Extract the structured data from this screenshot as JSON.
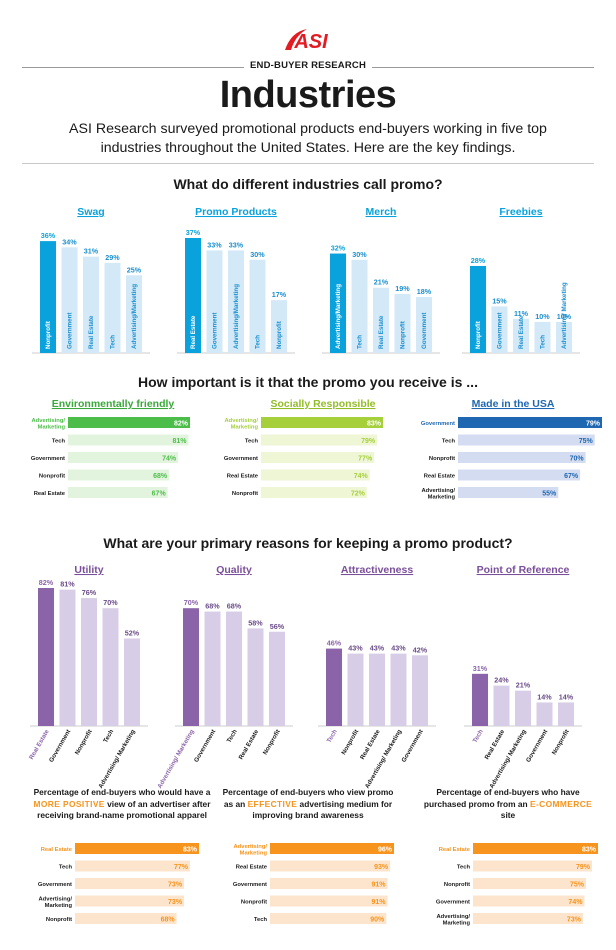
{
  "header": {
    "logo_text": "ASI",
    "kicker": "END-BUYER RESEARCH",
    "title": "Industries",
    "intro": "ASI Research surveyed promotional products end-buyers working in five top industries throughout the United States. Here are the key findings.",
    "logo_color": "#e31b23"
  },
  "sections": {
    "promo_names": "What do different industries call promo?",
    "importance": "How important is it that the promo you receive is ...",
    "reasons": "What are your primary reasons for keeping a promo product?"
  },
  "footnotes": {
    "positive": {
      "before": "Percentage of end-buyers who would have a ",
      "highlight": "MORE POSITIVE",
      "after": " view of an advertiser after receiving brand-name promotional apparel"
    },
    "effective": {
      "before": "Percentage of end-buyers who view promo as an ",
      "highlight": "EFFECTIVE",
      "after": " advertising medium for improving brand awareness"
    },
    "ecommerce": {
      "before": "Percentage of end-buyers who have purchased promo from an ",
      "highlight": "E-COMMERCE",
      "after": " site"
    }
  },
  "colors": {
    "blue_dark": "#0aa2dc",
    "blue_light": "#d3e9f8",
    "green_dark": "#4dbd4a",
    "green_light": "#e3f4de",
    "lime_dark": "#a6cf3c",
    "lime_light": "#eff6d5",
    "navy_dark": "#1f67b1",
    "navy_light": "#d4dcf1",
    "purple_dark": "#8a63a8",
    "purple_light": "#d8cde6",
    "orange_dark": "#f7941d",
    "orange_light": "#fde4cc"
  },
  "chart_data": [
    {
      "type": "bar",
      "group": "promo_names",
      "title": "Swag",
      "categories": [
        "Nonprofit",
        "Government",
        "Real Estate",
        "Tech",
        "Advertising/Marketing"
      ],
      "values": [
        36,
        34,
        31,
        29,
        25
      ],
      "labels": [
        "36%",
        "34%",
        "31%",
        "29%",
        "25%"
      ]
    },
    {
      "type": "bar",
      "group": "promo_names",
      "title": "Promo Products",
      "categories": [
        "Real Estate",
        "Government",
        "Advertising/Marketing",
        "Tech",
        "Nonprofit"
      ],
      "values": [
        37,
        33,
        33,
        30,
        17
      ],
      "labels": [
        "37%",
        "33%",
        "33%",
        "30%",
        "17%"
      ]
    },
    {
      "type": "bar",
      "group": "promo_names",
      "title": "Merch",
      "categories": [
        "Advertising/Marketing",
        "Tech",
        "Real Estate",
        "Nonprofit",
        "Government"
      ],
      "values": [
        32,
        30,
        21,
        19,
        18
      ],
      "labels": [
        "32%",
        "30%",
        "21%",
        "19%",
        "18%"
      ]
    },
    {
      "type": "bar",
      "group": "promo_names",
      "title": "Freebies",
      "categories": [
        "Nonprofit",
        "Government",
        "Real Estate",
        "Tech",
        "Advertising/ Marketing"
      ],
      "values": [
        28,
        15,
        11,
        10,
        10
      ],
      "labels": [
        "28%",
        "15%",
        "11%",
        "10%",
        "10%"
      ]
    },
    {
      "type": "bar",
      "orientation": "horizontal",
      "group": "importance",
      "title": "Environmentally friendly",
      "categories": [
        "Advertising/ Marketing",
        "Tech",
        "Government",
        "Nonprofit",
        "Real Estate"
      ],
      "values": [
        82,
        81,
        74,
        68,
        67
      ],
      "labels": [
        "82%",
        "81%",
        "74%",
        "68%",
        "67%"
      ]
    },
    {
      "type": "bar",
      "orientation": "horizontal",
      "group": "importance",
      "title": "Socially Responsible",
      "categories": [
        "Advertising/ Marketing",
        "Tech",
        "Government",
        "Real Estate",
        "Nonprofit"
      ],
      "values": [
        83,
        79,
        77,
        74,
        72
      ],
      "labels": [
        "83%",
        "79%",
        "77%",
        "74%",
        "72%"
      ]
    },
    {
      "type": "bar",
      "orientation": "horizontal",
      "group": "importance",
      "title": "Made in the USA",
      "categories": [
        "Government",
        "Tech",
        "Nonprofit",
        "Real Estate",
        "Advertising/ Marketing"
      ],
      "values": [
        79,
        75,
        70,
        67,
        55
      ],
      "labels": [
        "79%",
        "75%",
        "70%",
        "67%",
        "55%"
      ]
    },
    {
      "type": "bar",
      "group": "reasons",
      "title": "Utility",
      "categories": [
        "Real Estate",
        "Government",
        "Nonprofit",
        "Tech",
        "Advertising/ Marketing"
      ],
      "values": [
        82,
        81,
        76,
        70,
        52
      ],
      "labels": [
        "82%",
        "81%",
        "76%",
        "70%",
        "52%"
      ]
    },
    {
      "type": "bar",
      "group": "reasons",
      "title": "Quality",
      "categories": [
        "Advertising/ Marketing",
        "Government",
        "Tech",
        "Real Estate",
        "Nonprofit"
      ],
      "values": [
        70,
        68,
        68,
        58,
        56
      ],
      "labels": [
        "70%",
        "68%",
        "68%",
        "58%",
        "56%"
      ]
    },
    {
      "type": "bar",
      "group": "reasons",
      "title": "Attractiveness",
      "categories": [
        "Tech",
        "Nonprofit",
        "Real Estate",
        "Advertising/ Marketing",
        "Government"
      ],
      "values": [
        46,
        43,
        43,
        43,
        42
      ],
      "labels": [
        "46%",
        "43%",
        "43%",
        "43%",
        "42%"
      ]
    },
    {
      "type": "bar",
      "group": "reasons",
      "title": "Point of Reference",
      "categories": [
        "Tech",
        "Real Estate",
        "Advertising/ Marketing",
        "Government",
        "Nonprofit"
      ],
      "values": [
        31,
        24,
        21,
        14,
        14
      ],
      "labels": [
        "31%",
        "24%",
        "21%",
        "14%",
        "14%"
      ]
    },
    {
      "type": "bar",
      "orientation": "horizontal",
      "group": "positive",
      "categories": [
        "Real Estate",
        "Tech",
        "Government",
        "Advertising/ Marketing",
        "Nonprofit"
      ],
      "values": [
        83,
        77,
        73,
        73,
        68
      ],
      "labels": [
        "83%",
        "77%",
        "73%",
        "73%",
        "68%"
      ]
    },
    {
      "type": "bar",
      "orientation": "horizontal",
      "group": "effective",
      "categories": [
        "Advertising/ Marketing",
        "Real Estate",
        "Government",
        "Nonprofit",
        "Tech"
      ],
      "values": [
        96,
        93,
        91,
        91,
        90
      ],
      "labels": [
        "96%",
        "93%",
        "91%",
        "91%",
        "90%"
      ]
    },
    {
      "type": "bar",
      "orientation": "horizontal",
      "group": "ecommerce",
      "categories": [
        "Real Estate",
        "Tech",
        "Nonprofit",
        "Government",
        "Advertising/ Marketing"
      ],
      "values": [
        83,
        79,
        75,
        74,
        73
      ],
      "labels": [
        "83%",
        "79%",
        "75%",
        "74%",
        "73%"
      ]
    }
  ]
}
